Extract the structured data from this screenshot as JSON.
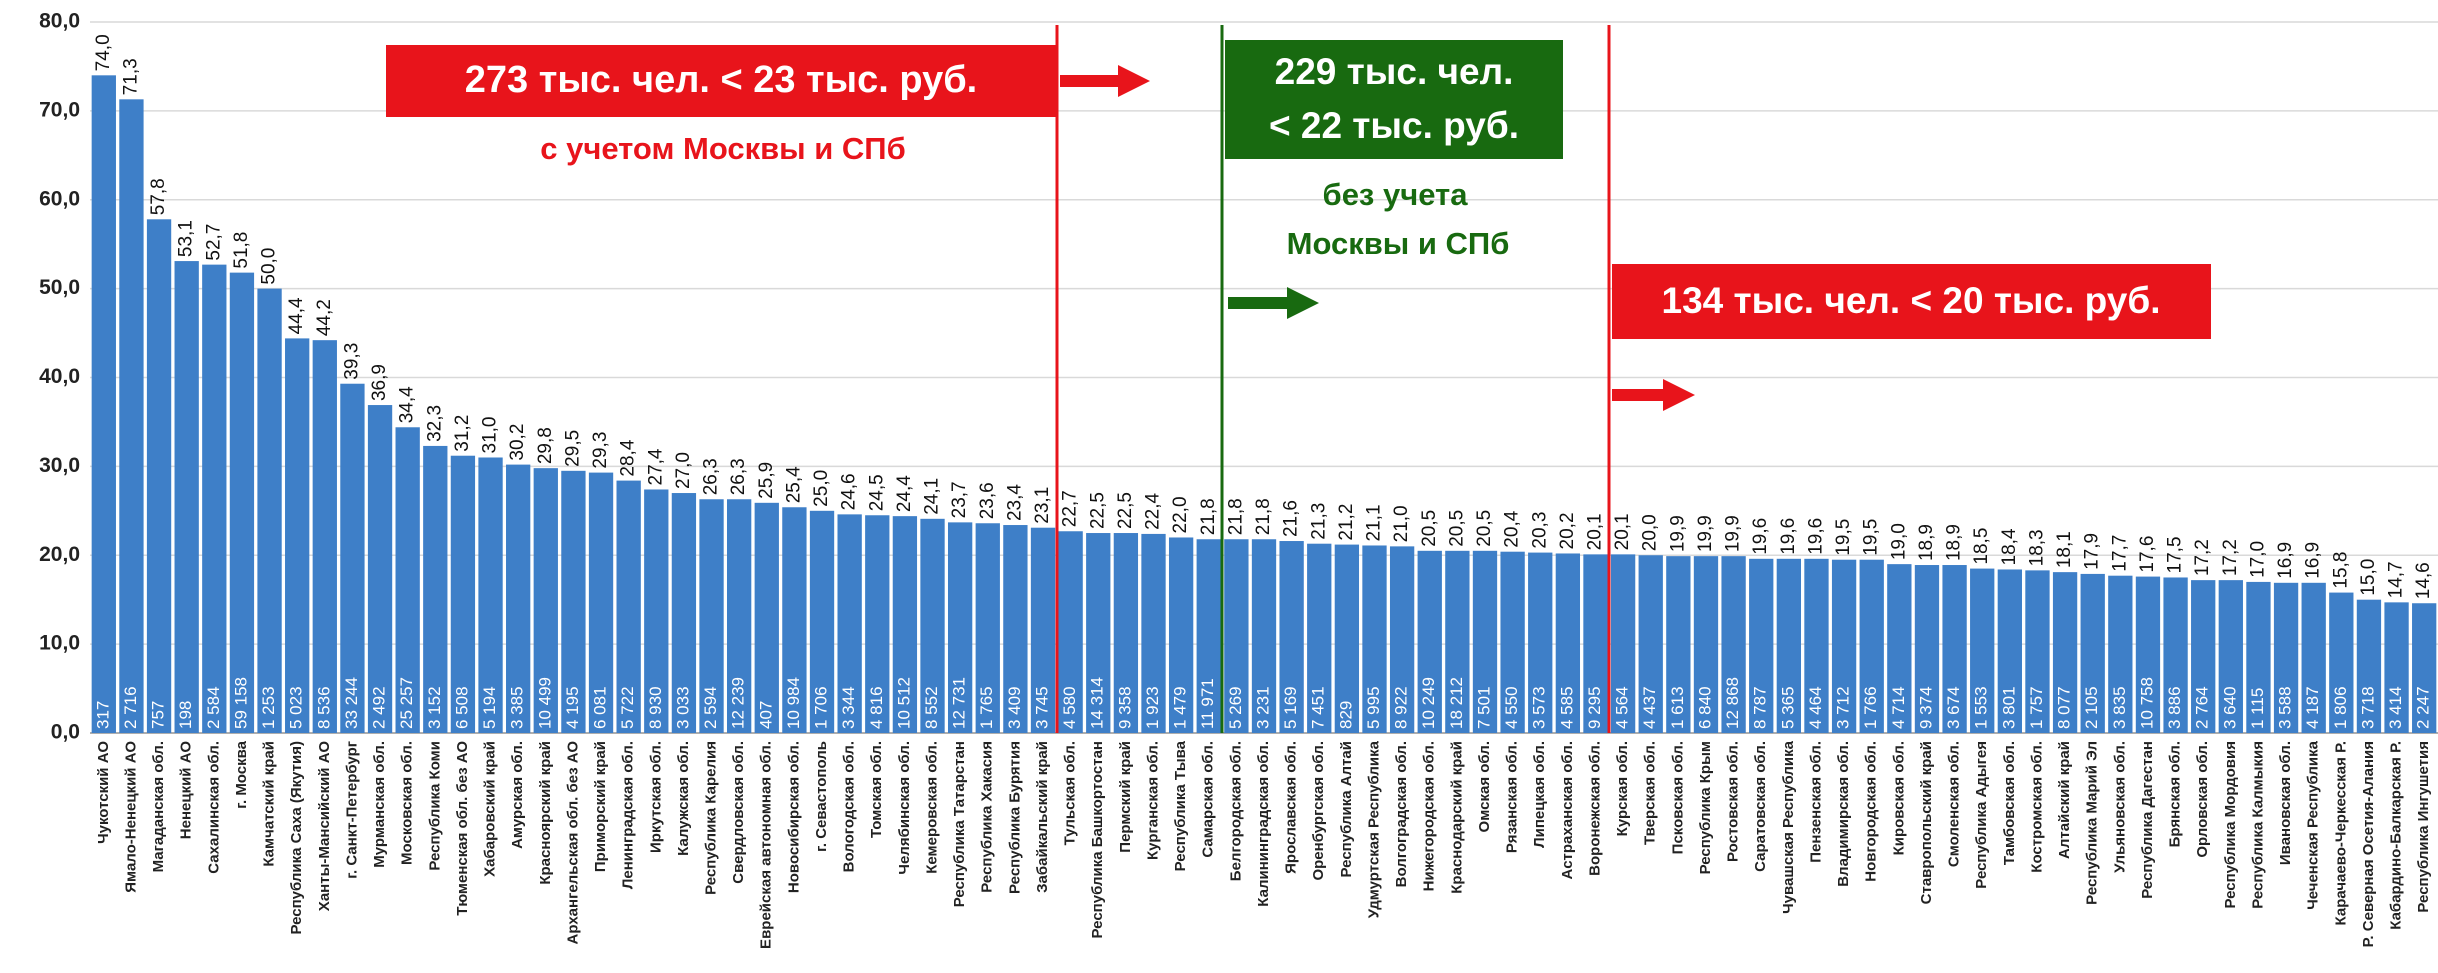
{
  "chart_data": {
    "type": "bar",
    "color": "#3e7fc8",
    "grid": true,
    "ylim": [
      0,
      80
    ],
    "yticks": [
      {
        "value": 0,
        "label": "0,0"
      },
      {
        "value": 10,
        "label": "10,0"
      },
      {
        "value": 20,
        "label": "20,0"
      },
      {
        "value": 30,
        "label": "30,0"
      },
      {
        "value": 40,
        "label": "40,0"
      },
      {
        "value": 50,
        "label": "50,0"
      },
      {
        "value": 60,
        "label": "60,0"
      },
      {
        "value": 70,
        "label": "70,0"
      },
      {
        "value": 80,
        "label": "80,0"
      }
    ],
    "categories": [
      "Чукотский АО",
      "Ямало-Ненецкий АО",
      "Магаданская обл.",
      "Ненецкий АО",
      "Сахалинская обл.",
      "г. Москва",
      "Камчатский край",
      "Республика Саха (Якутия)",
      "Ханты-Мансийский АО",
      "г. Санкт-Петербург",
      "Мурманская обл.",
      "Московская обл.",
      "Республика Коми",
      "Тюменская обл. без АО",
      "Хабаровский край",
      "Амурская обл.",
      "Красноярский край",
      "Архангельская обл. без АО",
      "Приморский край",
      "Ленинградская обл.",
      "Иркутская обл.",
      "Калужская обл.",
      "Республика Карелия",
      "Свердловская обл.",
      "Еврейская автономная обл.",
      "Новосибирская обл.",
      "г. Севастополь",
      "Вологодская обл.",
      "Томская обл.",
      "Челябинская обл.",
      "Кемеровская обл.",
      "Республика Татарстан",
      "Республика Хакасия",
      "Республика Бурятия",
      "Забайкальский край",
      "Тульская обл.",
      "Республика Башкортостан",
      "Пермский край",
      "Курганская обл.",
      "Республика Тыва",
      "Самарская обл.",
      "Белгородская обл.",
      "Калининградская обл.",
      "Ярославская обл.",
      "Оренбургская обл.",
      "Республика Алтай",
      "Удмуртская Республика",
      "Волгоградская обл.",
      "Нижегородская обл.",
      "Краснодарский край",
      "Омская обл.",
      "Рязанская обл.",
      "Липецкая обл.",
      "Астраханская обл.",
      "Воронежская обл.",
      "Курская обл.",
      "Тверская обл.",
      "Псковская обл.",
      "Республика Крым",
      "Ростовская обл.",
      "Саратовская обл.",
      "Чувашская Республика",
      "Пензенская обл.",
      "Владимирская обл.",
      "Новгородская обл.",
      "Кировская обл.",
      "Ставропольский край",
      "Смоленская обл.",
      "Республика Адыгея",
      "Тамбовская обл.",
      "Костромская обл.",
      "Алтайский край",
      "Республика Марий Эл",
      "Ульяновская обл.",
      "Республика Дагестан",
      "Брянская обл.",
      "Орловская обл.",
      "Республика Мордовия",
      "Республика Калмыкия",
      "Ивановская обл.",
      "Чеченская Республика",
      "Карачаево-Черкесская Р.",
      "Р. Северная Осетия-Алания",
      "Кабардино-Балкарская Р.",
      "Республика Ингушетия"
    ],
    "values": [
      74.0,
      71.3,
      57.8,
      53.1,
      52.7,
      51.8,
      50.0,
      44.4,
      44.2,
      39.3,
      36.9,
      34.4,
      32.3,
      31.2,
      31.0,
      30.2,
      29.8,
      29.5,
      29.3,
      28.4,
      27.4,
      27.0,
      26.3,
      26.3,
      25.9,
      25.4,
      25.0,
      24.6,
      24.5,
      24.4,
      24.1,
      23.7,
      23.6,
      23.4,
      23.1,
      22.7,
      22.5,
      22.5,
      22.4,
      22.0,
      21.8,
      21.8,
      21.8,
      21.6,
      21.3,
      21.2,
      21.1,
      21.0,
      20.5,
      20.5,
      20.5,
      20.4,
      20.3,
      20.2,
      20.1,
      20.1,
      20.0,
      19.9,
      19.9,
      19.9,
      19.6,
      19.6,
      19.6,
      19.5,
      19.5,
      19.0,
      18.9,
      18.9,
      18.5,
      18.4,
      18.3,
      18.1,
      17.9,
      17.7,
      17.6,
      17.5,
      17.2,
      17.2,
      17.0,
      16.9,
      16.9,
      15.8,
      15.0,
      14.7,
      14.6
    ],
    "value_labels": [
      "74,0",
      "71,3",
      "57,8",
      "53,1",
      "52,7",
      "51,8",
      "50,0",
      "44,4",
      "44,2",
      "39,3",
      "36,9",
      "34,4",
      "32,3",
      "31,2",
      "31,0",
      "30,2",
      "29,8",
      "29,5",
      "29,3",
      "28,4",
      "27,4",
      "27,0",
      "26,3",
      "26,3",
      "25,9",
      "25,4",
      "25,0",
      "24,6",
      "24,5",
      "24,4",
      "24,1",
      "23,7",
      "23,6",
      "23,4",
      "23,1",
      "22,7",
      "22,5",
      "22,5",
      "22,4",
      "22,0",
      "21,8",
      "21,8",
      "21,8",
      "21,6",
      "21,3",
      "21,2",
      "21,1",
      "21,0",
      "20,5",
      "20,5",
      "20,5",
      "20,4",
      "20,3",
      "20,2",
      "20,1",
      "20,1",
      "20,0",
      "19,9",
      "19,9",
      "19,9",
      "19,6",
      "19,6",
      "19,6",
      "19,5",
      "19,5",
      "19,0",
      "18,9",
      "18,9",
      "18,5",
      "18,4",
      "18,3",
      "18,1",
      "17,9",
      "17,7",
      "17,6",
      "17,5",
      "17,2",
      "17,2",
      "17,0",
      "16,9",
      "16,9",
      "15,8",
      "15,0",
      "14,7",
      "14,6"
    ],
    "count_labels": [
      "317",
      "2 716",
      "757",
      "198",
      "2 584",
      "59 158",
      "1 253",
      "5 023",
      "8 536",
      "33 244",
      "2 492",
      "25 257",
      "3 152",
      "6 508",
      "5 194",
      "3 385",
      "10 499",
      "4 195",
      "6 081",
      "5 722",
      "8 930",
      "3 033",
      "2 594",
      "12 239",
      "407",
      "10 984",
      "1 706",
      "3 344",
      "4 816",
      "10 512",
      "8 552",
      "12 731",
      "1 765",
      "3 409",
      "3 745",
      "4 580",
      "14 314",
      "9 358",
      "1 923",
      "1 479",
      "11 971",
      "5 269",
      "3 231",
      "5 169",
      "7 451",
      "829",
      "5 995",
      "8 922",
      "10 249",
      "18 212",
      "7 501",
      "4 550",
      "3 573",
      "4 585",
      "9 295",
      "4 564",
      "4 437",
      "1 613",
      "6 840",
      "12 868",
      "8 787",
      "5 365",
      "4 464",
      "3 712",
      "1 766",
      "4 714",
      "9 374",
      "3 674",
      "1 553",
      "3 801",
      "1 757",
      "8 077",
      "2 105",
      "3 835",
      "10 758",
      "3 886",
      "2 764",
      "3 640",
      "1 115",
      "3 588",
      "4 187",
      "1 806",
      "3 718",
      "3 414",
      "2 247"
    ],
    "annotations": {
      "red1": "273 тыс. чел. < 23 тыс. руб.",
      "red1_sub": "с учетом Москвы и СПб",
      "green_line1": "229 тыс. чел.",
      "green_line2": "< 22 тыс. руб.",
      "green_sub1": "без учета",
      "green_sub2": "Москвы и СПб",
      "red2": "134 тыс. чел. < 20 тыс. руб."
    }
  }
}
